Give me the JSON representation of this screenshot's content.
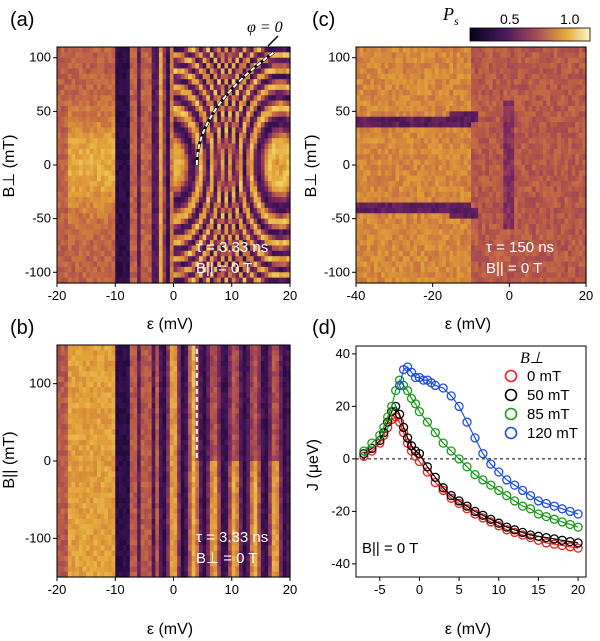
{
  "colors": {
    "map_low": "#0b0426",
    "map_mid": "#7a2d6a",
    "map_high": "#f0ca5a",
    "map_top": "#fbf7c5",
    "series_0mT": "#e8211d",
    "series_50mT": "#000000",
    "series_85mT": "#1a9a1a",
    "series_120mT": "#1f4fe0"
  },
  "colorbar": {
    "label": "P",
    "label_sub": "s",
    "ticks": [
      "0.5",
      "1.0"
    ]
  },
  "chart_data": [
    {
      "panel": "(a)",
      "type": "heatmap",
      "xlabel": "ε (mV)",
      "ylabel": "B⊥ (mT)",
      "xlim": [
        -20,
        20
      ],
      "ylim": [
        -110,
        110
      ],
      "xticks": [
        "-20",
        "-10",
        "0",
        "10",
        "20"
      ],
      "yticks": [
        "-100",
        "-50",
        "0",
        "50",
        "100"
      ],
      "annotations": [
        "φ = 0",
        "τ = 3.33 ns",
        "B|| = 0 T"
      ],
      "params": {
        "tau": "3.33 ns",
        "B_parallel": "0 T"
      }
    },
    {
      "panel": "(b)",
      "type": "heatmap",
      "xlabel": "ε (mV)",
      "ylabel": "B|| (mT)",
      "xlim": [
        -20,
        20
      ],
      "ylim": [
        -150,
        150
      ],
      "xticks": [
        "-20",
        "-10",
        "0",
        "10",
        "20"
      ],
      "yticks": [
        "-100",
        "0",
        "100"
      ],
      "annotations": [
        "τ = 3.33 ns",
        "B⊥ = 0 T"
      ],
      "params": {
        "tau": "3.33 ns",
        "B_perp": "0 T"
      }
    },
    {
      "panel": "(c)",
      "type": "heatmap",
      "xlabel": "ε (mV)",
      "ylabel": "B⊥ (mT)",
      "xlim": [
        -40,
        20
      ],
      "ylim": [
        -110,
        110
      ],
      "xticks": [
        "-40",
        "-20",
        "0",
        "20"
      ],
      "yticks": [
        "-100",
        "-50",
        "0",
        "50",
        "100"
      ],
      "annotations": [
        "τ = 150 ns",
        "B|| = 0 T"
      ],
      "params": {
        "tau": "150 ns",
        "B_parallel": "0 T"
      }
    },
    {
      "panel": "(d)",
      "type": "scatter",
      "xlabel": "ε (mV)",
      "ylabel": "J (μeV)",
      "xlim": [
        -8,
        21
      ],
      "ylim": [
        -45,
        43
      ],
      "xticks": [
        "-5",
        "0",
        "5",
        "10",
        "15",
        "20"
      ],
      "yticks": [
        "-40",
        "-20",
        "0",
        "20",
        "40"
      ],
      "legend_title": "B⊥",
      "legend_position": "top-right",
      "annotation": "B|| = 0 T",
      "series": [
        {
          "name": "0 mT",
          "x": [
            -7,
            -6,
            -5,
            -4.5,
            -4,
            -3.5,
            -3,
            -2.5,
            -2,
            -1.5,
            -1,
            -0.5,
            0,
            1,
            2,
            3,
            4,
            5,
            6,
            7,
            8,
            9,
            10,
            11,
            12,
            13,
            14,
            15,
            16,
            17,
            18,
            19,
            20
          ],
          "y": [
            1,
            3,
            6,
            9,
            12,
            15,
            16,
            14,
            10,
            6,
            3,
            1,
            -1,
            -5,
            -9,
            -12,
            -15,
            -17,
            -19,
            -21,
            -22.5,
            -24,
            -25.5,
            -27,
            -28,
            -29,
            -30,
            -31,
            -32,
            -32.5,
            -33,
            -33.5,
            -34
          ]
        },
        {
          "name": "50 mT",
          "x": [
            -7,
            -6,
            -5,
            -4.5,
            -4,
            -3.5,
            -3,
            -2.5,
            -2,
            -1.5,
            -1,
            -0.5,
            0,
            1,
            2,
            3,
            4,
            5,
            6,
            7,
            8,
            9,
            10,
            11,
            12,
            13,
            14,
            15,
            16,
            17,
            18,
            19,
            20
          ],
          "y": [
            2,
            4,
            7,
            10,
            14,
            18,
            20,
            17,
            12,
            8,
            5,
            3,
            2,
            -3,
            -7,
            -11,
            -14,
            -16,
            -18,
            -20,
            -21.5,
            -23,
            -24.5,
            -26,
            -27,
            -28,
            -29,
            -29.5,
            -30,
            -30.5,
            -31,
            -31.5,
            -32
          ]
        },
        {
          "name": "85 mT",
          "x": [
            -7,
            -6,
            -5,
            -4.5,
            -4,
            -3.5,
            -3,
            -2.5,
            -2,
            -1.5,
            -1,
            -0.5,
            0,
            1,
            2,
            3,
            4,
            5,
            6,
            7,
            8,
            9,
            10,
            11,
            12,
            13,
            14,
            15,
            16,
            17,
            18,
            19,
            20
          ],
          "y": [
            3,
            6,
            9,
            12,
            16,
            20,
            26,
            30,
            28,
            26,
            23,
            21,
            18,
            14,
            10,
            6,
            3,
            0,
            -3,
            -6,
            -8,
            -10,
            -12,
            -14,
            -16,
            -18,
            -19,
            -21,
            -22,
            -23,
            -24,
            -25,
            -26
          ]
        },
        {
          "name": "120 mT",
          "x": [
            -2.5,
            -2,
            -1.5,
            -1,
            -0.5,
            0,
            0.5,
            1,
            1.5,
            2,
            3,
            4,
            5,
            6,
            7,
            8,
            9,
            10,
            11,
            12,
            13,
            14,
            15,
            16,
            17,
            18,
            19,
            20
          ],
          "y": [
            28,
            34,
            35,
            33,
            31,
            31,
            30,
            30,
            29,
            28,
            27,
            24,
            20,
            14,
            8,
            2,
            -2,
            -5,
            -8,
            -10,
            -12,
            -14,
            -16,
            -17,
            -18,
            -19,
            -20,
            -21
          ]
        }
      ]
    }
  ]
}
